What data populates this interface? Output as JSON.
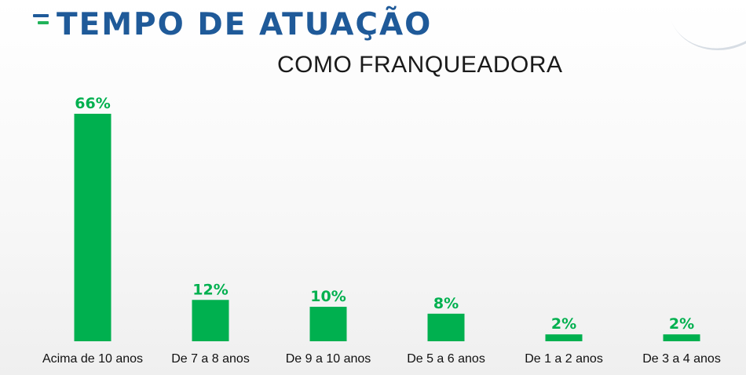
{
  "header": {
    "title": "TEMPO DE ATUAÇÃO",
    "subtitle": "COMO FRANQUEADORA"
  },
  "colors": {
    "bar": "#00b04f",
    "title": "#1f5a99",
    "accent_green": "#21b35a"
  },
  "chart_data": {
    "type": "bar",
    "title": "TEMPO DE ATUAÇÃO",
    "subtitle": "COMO FRANQUEADORA",
    "categories": [
      "Acima de 10 anos",
      "De 7 a 8 anos",
      "De 9 a 10 anos",
      "De 5 a 6 anos",
      "De 1 a 2 anos",
      "De 3 a 4 anos"
    ],
    "values": [
      66,
      12,
      10,
      8,
      2,
      2
    ],
    "data_labels": [
      "66%",
      "12%",
      "10%",
      "8%",
      "2%",
      "2%"
    ],
    "xlabel": "",
    "ylabel": "",
    "ylim": [
      0,
      66
    ],
    "grid": false,
    "legend": "none"
  }
}
